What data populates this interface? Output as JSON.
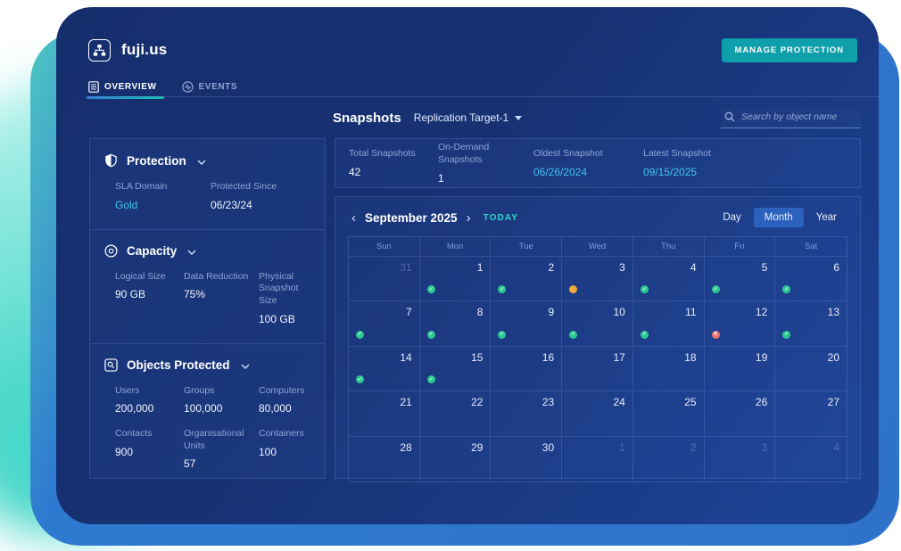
{
  "window": {
    "title": "fuji.us"
  },
  "header": {
    "manage_button": "MANAGE PROTECTION"
  },
  "tabs": [
    {
      "label": "OVERVIEW",
      "active": true
    },
    {
      "label": "EVENTS",
      "active": false
    }
  ],
  "sidebar": {
    "sections": [
      {
        "title": "Protection",
        "icon": "shield-icon",
        "fields": [
          {
            "label": "SLA Domain",
            "value": "Gold",
            "link": true
          },
          {
            "label": "Protected Since",
            "value": "06/23/24"
          }
        ]
      },
      {
        "title": "Capacity",
        "icon": "disk-icon",
        "fields": [
          {
            "label": "Logical Size",
            "value": "90 GB"
          },
          {
            "label": "Data Reduction",
            "value": "75%"
          },
          {
            "label": "Physical Snapshot Size",
            "value": "100 GB"
          }
        ]
      },
      {
        "title": "Objects Protected",
        "icon": "object-search-icon",
        "fields": [
          {
            "label": "Users",
            "value": "200,000"
          },
          {
            "label": "Groups",
            "value": "100,000"
          },
          {
            "label": "Computers",
            "value": "80,000"
          },
          {
            "label": "Contacts",
            "value": "900"
          },
          {
            "label": "Organisational Units",
            "value": "57"
          },
          {
            "label": "Containers",
            "value": "100"
          }
        ]
      }
    ]
  },
  "snapshots": {
    "title": "Snapshots",
    "target_selector": "Replication Target-1",
    "search_placeholder": "Search by object name",
    "stats": [
      {
        "label": "Total Snapshots",
        "value": "42"
      },
      {
        "label": "On-Demand Snapshots",
        "value": "1"
      },
      {
        "label": "Oldest Snapshot",
        "value": "06/26/2024",
        "link": true
      },
      {
        "label": "Latest Snapshot",
        "value": "09/15/2025",
        "link": true
      }
    ]
  },
  "calendar": {
    "month_label": "September 2025",
    "today_label": "TODAY",
    "views": [
      {
        "label": "Day",
        "active": false
      },
      {
        "label": "Month",
        "active": true
      },
      {
        "label": "Year",
        "active": false
      }
    ],
    "day_headers": [
      "Sun",
      "Mon",
      "Tue",
      "Wed",
      "Thu",
      "Fri",
      "Sat"
    ],
    "cells": [
      {
        "day": "31",
        "dim": true
      },
      {
        "day": "1",
        "dot": "success"
      },
      {
        "day": "2",
        "dot": "success"
      },
      {
        "day": "3",
        "dot": "warning"
      },
      {
        "day": "4",
        "dot": "success"
      },
      {
        "day": "5",
        "dot": "success"
      },
      {
        "day": "6",
        "dot": "success"
      },
      {
        "day": "7",
        "dot": "success"
      },
      {
        "day": "8",
        "dot": "success"
      },
      {
        "day": "9",
        "dot": "success"
      },
      {
        "day": "10",
        "dot": "success"
      },
      {
        "day": "11",
        "dot": "success"
      },
      {
        "day": "12",
        "dot": "error"
      },
      {
        "day": "13",
        "dot": "success"
      },
      {
        "day": "14",
        "dot": "success"
      },
      {
        "day": "15",
        "dot": "success"
      },
      {
        "day": "16"
      },
      {
        "day": "17"
      },
      {
        "day": "18"
      },
      {
        "day": "19"
      },
      {
        "day": "20"
      },
      {
        "day": "21"
      },
      {
        "day": "22"
      },
      {
        "day": "23"
      },
      {
        "day": "24"
      },
      {
        "day": "25"
      },
      {
        "day": "26"
      },
      {
        "day": "27"
      },
      {
        "day": "28"
      },
      {
        "day": "29"
      },
      {
        "day": "30"
      },
      {
        "day": "1",
        "dim": true
      },
      {
        "day": "2",
        "dim": true
      },
      {
        "day": "3",
        "dim": true
      },
      {
        "day": "4",
        "dim": true
      }
    ]
  },
  "colors": {
    "accent_teal": "#0f9fab",
    "link_cyan": "#41c3ea",
    "dot_success": "#2bc990",
    "dot_warning": "#f2a93b",
    "dot_error": "#f07070"
  }
}
